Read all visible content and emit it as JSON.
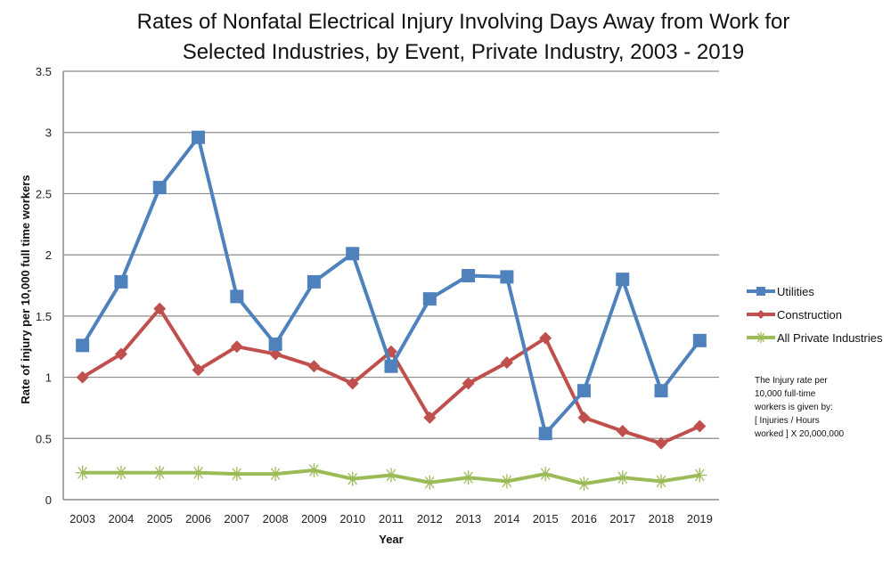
{
  "chart_data": {
    "type": "line",
    "title_lines": [
      "Rates of Nonfatal Electrical Injury Involving Days Away from Work for",
      "Selected Industries, by Event, Private Industry, 2003 - 2019"
    ],
    "xlabel": "Year",
    "ylabel": "Rate of injury per 10,000 full time workers",
    "ylim": [
      0,
      3.5
    ],
    "yticks": [
      0,
      0.5,
      1,
      1.5,
      2,
      2.5,
      3,
      3.5
    ],
    "ytick_labels": [
      "0",
      "0.5",
      "1",
      "1.5",
      "2",
      "2.5",
      "3",
      "3.5"
    ],
    "grid": true,
    "legend_position": "right",
    "categories": [
      "2003",
      "2004",
      "2005",
      "2006",
      "2007",
      "2008",
      "2009",
      "2010",
      "2011",
      "2012",
      "2013",
      "2014",
      "2015",
      "2016",
      "2017",
      "2018",
      "2019"
    ],
    "series": [
      {
        "name": "Utilities",
        "color": "#4F81BD",
        "marker": "square",
        "values": [
          1.26,
          1.78,
          2.55,
          2.96,
          1.66,
          1.27,
          1.78,
          2.01,
          1.09,
          1.64,
          1.83,
          1.82,
          0.54,
          0.89,
          1.8,
          0.89,
          1.3
        ]
      },
      {
        "name": "Construction",
        "color": "#C0504D",
        "marker": "diamond",
        "values": [
          1.0,
          1.19,
          1.56,
          1.06,
          1.25,
          1.19,
          1.09,
          0.95,
          1.21,
          0.67,
          0.95,
          1.12,
          1.32,
          0.67,
          0.56,
          0.46,
          0.6
        ]
      },
      {
        "name": "All Private Industries",
        "color": "#9BBB59",
        "marker": "star",
        "values": [
          0.22,
          0.22,
          0.22,
          0.22,
          0.21,
          0.21,
          0.24,
          0.17,
          0.2,
          0.14,
          0.18,
          0.15,
          0.21,
          0.13,
          0.18,
          0.15,
          0.2
        ]
      }
    ],
    "annotation": "The Injury rate per\n10,000 full-time\nworkers is given by:\n[ Injuries / Hours\nworked ] X 20,000,000"
  }
}
